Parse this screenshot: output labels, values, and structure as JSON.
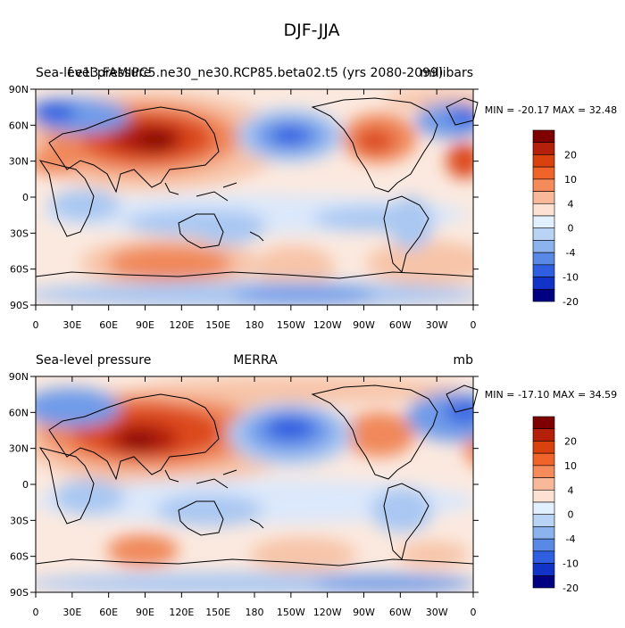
{
  "figure": {
    "title": "DJF-JJA"
  },
  "panels": [
    {
      "left_title": "Sea-level pressure",
      "center_title": "f.e13.FAMIPC5.ne30_ne30.RCP85.beta02.t5 (yrs 2080-2099)",
      "right_title": "millibars",
      "stats": "MIN = -20.17 MAX =  32.48"
    },
    {
      "left_title": "Sea-level pressure",
      "center_title": "MERRA",
      "right_title": "mb",
      "stats": "MIN = -17.10 MAX =  34.59"
    }
  ],
  "axes": {
    "lon_labels": [
      "0",
      "30E",
      "60E",
      "90E",
      "120E",
      "150E",
      "180",
      "150W",
      "120W",
      "90W",
      "60W",
      "30W",
      "0"
    ],
    "lat_labels": [
      "90N",
      "60N",
      "30N",
      "0",
      "30S",
      "60S",
      "90S"
    ]
  },
  "colorbar": {
    "labels": [
      "20",
      "10",
      "4",
      "0",
      "-4",
      "-10",
      "-20"
    ],
    "colors": [
      "#7f0000",
      "#b5200b",
      "#d9420f",
      "#f0642b",
      "#f58a5a",
      "#f9b89a",
      "#fde2d4",
      "#e2efff",
      "#b9d3f5",
      "#8cb3ee",
      "#5a88e6",
      "#2f5fe0",
      "#1133c8",
      "#000080"
    ]
  },
  "map_palette": {
    "neutral": "#fbe9df",
    "high_1": "#f7c4a8",
    "high_2": "#f0885a",
    "high_3": "#dc4a1f",
    "high_4": "#b01c0a",
    "high_5": "#7a0000",
    "low_1": "#dbe8fb",
    "low_2": "#a9c7f2",
    "low_3": "#6f9be9",
    "low_4": "#2f5fe0",
    "low_5": "#0d2fb0"
  }
}
